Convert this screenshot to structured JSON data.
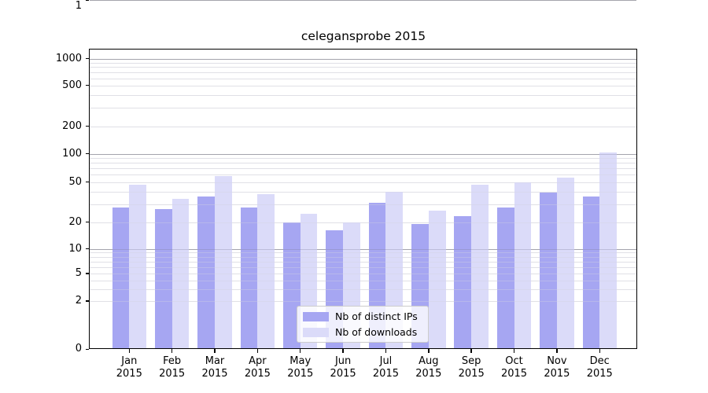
{
  "chart_data": {
    "type": "bar",
    "title": "celegansprobe 2015",
    "categories": [
      "Jan 2015",
      "Feb 2015",
      "Mar 2015",
      "Apr 2015",
      "May 2015",
      "Jun 2015",
      "Jul 2015",
      "Aug 2015",
      "Sep 2015",
      "Oct 2015",
      "Nov 2015",
      "Dec 2015"
    ],
    "series": [
      {
        "name": "Nb of distinct IPs",
        "color": "#a6a6f2",
        "values": [
          28,
          27,
          36,
          28,
          20,
          16,
          31,
          19,
          23,
          28,
          39,
          36
        ]
      },
      {
        "name": "Nb of downloads",
        "color": "#dbdbf9",
        "values": [
          47,
          34,
          58,
          38,
          24,
          20,
          40,
          26,
          47,
          50,
          56,
          104
        ]
      }
    ],
    "xlabel": "",
    "ylabel": "",
    "yscale": "asinh-log",
    "yticks": [
      0,
      1,
      2,
      5,
      10,
      20,
      50,
      100,
      200,
      500,
      1000
    ],
    "ylim": [
      0,
      1200
    ],
    "grid": {
      "orientation": "horizontal",
      "major": [
        1,
        10,
        100,
        1000
      ],
      "minor": [
        2,
        3,
        4,
        5,
        6,
        7,
        8,
        9,
        20,
        30,
        40,
        50,
        60,
        70,
        80,
        90,
        200,
        300,
        400,
        500,
        600,
        700,
        800,
        900
      ]
    },
    "legend": {
      "position": "lower center",
      "entries": [
        "Nb of distinct IPs",
        "Nb of downloads"
      ]
    },
    "colors": {
      "background": "#ffffff",
      "grid_major": "#b8b8b8",
      "grid_minor": "#e9e9e9",
      "axis": "#000000",
      "text": "#000000"
    }
  }
}
